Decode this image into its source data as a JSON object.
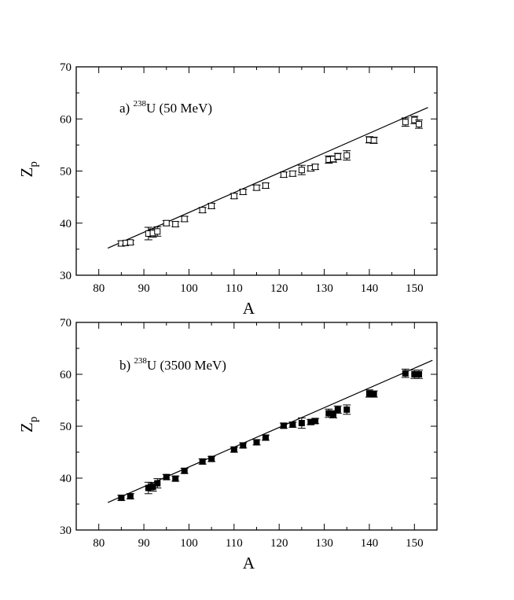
{
  "chart_data": [
    {
      "type": "scatter",
      "annotation_prefix": "a)",
      "annotation_isotope_mass": "238",
      "annotation_rest": "U (50 MeV)",
      "xlabel": "A",
      "ylabel_main": "Z",
      "ylabel_sub": "p",
      "xlim": [
        75,
        155
      ],
      "ylim": [
        30,
        70
      ],
      "xticks": [
        80,
        90,
        100,
        110,
        120,
        130,
        140,
        150
      ],
      "yticks": [
        30,
        40,
        50,
        60,
        70
      ],
      "marker": "open-square",
      "grid": false,
      "fit_line": {
        "x": [
          82,
          153
        ],
        "y": [
          35.2,
          62.2
        ]
      },
      "points": [
        {
          "x": 85,
          "y": 36.1,
          "err": 0.5
        },
        {
          "x": 86,
          "y": 36.2,
          "err": 0.4
        },
        {
          "x": 87,
          "y": 36.3,
          "err": 0.4
        },
        {
          "x": 91,
          "y": 38.0,
          "err": 1.2
        },
        {
          "x": 92,
          "y": 38.1,
          "err": 0.8
        },
        {
          "x": 93,
          "y": 38.4,
          "err": 0.9
        },
        {
          "x": 95,
          "y": 40.0,
          "err": 0.5
        },
        {
          "x": 97,
          "y": 39.8,
          "err": 0.5
        },
        {
          "x": 99,
          "y": 40.8,
          "err": 0.5
        },
        {
          "x": 103,
          "y": 42.5,
          "err": 0.5
        },
        {
          "x": 105,
          "y": 43.3,
          "err": 0.5
        },
        {
          "x": 110,
          "y": 45.2,
          "err": 0.5
        },
        {
          "x": 112,
          "y": 46.0,
          "err": 0.5
        },
        {
          "x": 115,
          "y": 46.8,
          "err": 0.5
        },
        {
          "x": 117,
          "y": 47.2,
          "err": 0.5
        },
        {
          "x": 121,
          "y": 49.3,
          "err": 0.5
        },
        {
          "x": 123,
          "y": 49.5,
          "err": 0.5
        },
        {
          "x": 125,
          "y": 50.2,
          "err": 0.9
        },
        {
          "x": 127,
          "y": 50.5,
          "err": 0.5
        },
        {
          "x": 128,
          "y": 50.8,
          "err": 0.5
        },
        {
          "x": 131,
          "y": 52.2,
          "err": 0.7
        },
        {
          "x": 132,
          "y": 52.3,
          "err": 0.6
        },
        {
          "x": 133,
          "y": 52.8,
          "err": 0.6
        },
        {
          "x": 135,
          "y": 53.0,
          "err": 0.9
        },
        {
          "x": 140,
          "y": 56.0,
          "err": 0.6
        },
        {
          "x": 141,
          "y": 55.9,
          "err": 0.6
        },
        {
          "x": 148,
          "y": 59.4,
          "err": 0.8
        },
        {
          "x": 150,
          "y": 59.8,
          "err": 0.7
        },
        {
          "x": 151,
          "y": 59.0,
          "err": 0.8
        }
      ]
    },
    {
      "type": "scatter",
      "annotation_prefix": "b)",
      "annotation_isotope_mass": "238",
      "annotation_rest": "U (3500 MeV)",
      "xlabel": "A",
      "ylabel_main": "Z",
      "ylabel_sub": "p",
      "xlim": [
        75,
        155
      ],
      "ylim": [
        30,
        70
      ],
      "xticks": [
        80,
        90,
        100,
        110,
        120,
        130,
        140,
        150
      ],
      "yticks": [
        30,
        40,
        50,
        60,
        70
      ],
      "marker": "filled-square",
      "grid": false,
      "fit_line": {
        "x": [
          82,
          154
        ],
        "y": [
          35.3,
          62.7
        ]
      },
      "points": [
        {
          "x": 85,
          "y": 36.2,
          "err": 0.5
        },
        {
          "x": 87,
          "y": 36.5,
          "err": 0.5
        },
        {
          "x": 91,
          "y": 38.1,
          "err": 1.1
        },
        {
          "x": 92,
          "y": 38.3,
          "err": 0.8
        },
        {
          "x": 93,
          "y": 39.0,
          "err": 0.9
        },
        {
          "x": 95,
          "y": 40.2,
          "err": 0.5
        },
        {
          "x": 97,
          "y": 39.9,
          "err": 0.5
        },
        {
          "x": 99,
          "y": 41.4,
          "err": 0.5
        },
        {
          "x": 103,
          "y": 43.2,
          "err": 0.5
        },
        {
          "x": 105,
          "y": 43.7,
          "err": 0.5
        },
        {
          "x": 110,
          "y": 45.5,
          "err": 0.5
        },
        {
          "x": 112,
          "y": 46.3,
          "err": 0.5
        },
        {
          "x": 115,
          "y": 46.9,
          "err": 0.5
        },
        {
          "x": 117,
          "y": 47.8,
          "err": 0.5
        },
        {
          "x": 121,
          "y": 50.1,
          "err": 0.5
        },
        {
          "x": 123,
          "y": 50.3,
          "err": 0.5
        },
        {
          "x": 125,
          "y": 50.6,
          "err": 1.0
        },
        {
          "x": 127,
          "y": 50.8,
          "err": 0.5
        },
        {
          "x": 128,
          "y": 51.0,
          "err": 0.5
        },
        {
          "x": 131,
          "y": 52.5,
          "err": 0.8
        },
        {
          "x": 132,
          "y": 52.3,
          "err": 0.7
        },
        {
          "x": 133,
          "y": 53.2,
          "err": 0.7
        },
        {
          "x": 135,
          "y": 53.2,
          "err": 0.9
        },
        {
          "x": 140,
          "y": 56.3,
          "err": 0.7
        },
        {
          "x": 141,
          "y": 56.2,
          "err": 0.6
        },
        {
          "x": 148,
          "y": 60.2,
          "err": 0.8
        },
        {
          "x": 150,
          "y": 60.0,
          "err": 0.8
        },
        {
          "x": 151,
          "y": 60.0,
          "err": 0.8
        }
      ]
    }
  ]
}
